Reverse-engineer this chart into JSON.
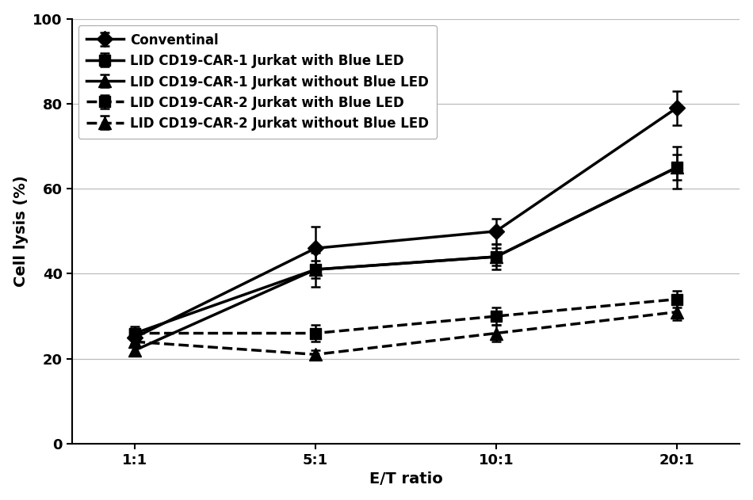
{
  "x_labels": [
    "1:1",
    "5:1",
    "10:1",
    "20:1"
  ],
  "x_values": [
    0,
    1,
    2,
    3
  ],
  "series": [
    {
      "label": "Conventinal",
      "y": [
        25,
        46,
        50,
        79
      ],
      "yerr": [
        1.5,
        5,
        3,
        4
      ],
      "marker": "D",
      "linestyle": "solid",
      "linewidth": 2.5,
      "markersize": 10,
      "color": "#000000",
      "zorder": 5
    },
    {
      "label": "LID CD19-CAR-1 Jurkat with Blue LED",
      "y": [
        26,
        41,
        44,
        65
      ],
      "yerr": [
        1.5,
        4,
        3,
        5
      ],
      "marker": "s",
      "linestyle": "solid",
      "linewidth": 2.5,
      "markersize": 10,
      "color": "#000000",
      "zorder": 4
    },
    {
      "label": "LID CD19-CAR-1 Jurkat without Blue LED",
      "y": [
        22,
        41,
        44,
        65
      ],
      "yerr": [
        1,
        2,
        2,
        3
      ],
      "marker": "^",
      "linestyle": "solid",
      "linewidth": 2.5,
      "markersize": 11,
      "color": "#000000",
      "zorder": 3
    },
    {
      "label": "LID CD19-CAR-2 Jurkat with Blue LED",
      "y": [
        26,
        26,
        30,
        34
      ],
      "yerr": [
        1,
        2,
        2,
        2
      ],
      "marker": "s",
      "linestyle": "dashed",
      "linewidth": 2.5,
      "markersize": 10,
      "color": "#000000",
      "zorder": 2
    },
    {
      "label": "LID CD19-CAR-2 Jurkat without Blue LED",
      "y": [
        24,
        21,
        26,
        31
      ],
      "yerr": [
        1,
        1,
        2,
        2
      ],
      "marker": "^",
      "linestyle": "dashed",
      "linewidth": 2.5,
      "markersize": 11,
      "color": "#000000",
      "zorder": 1
    }
  ],
  "ylabel": "Cell lysis (%)",
  "xlabel": "E/T ratio",
  "ylim": [
    0,
    100
  ],
  "yticks": [
    0,
    20,
    40,
    60,
    80,
    100
  ],
  "background_color": "#ffffff",
  "grid_color": "#bbbbbb",
  "legend_fontsize": 12,
  "axis_label_fontsize": 14,
  "tick_fontsize": 13,
  "figsize": [
    9.5,
    6.31
  ],
  "dpi": 100
}
